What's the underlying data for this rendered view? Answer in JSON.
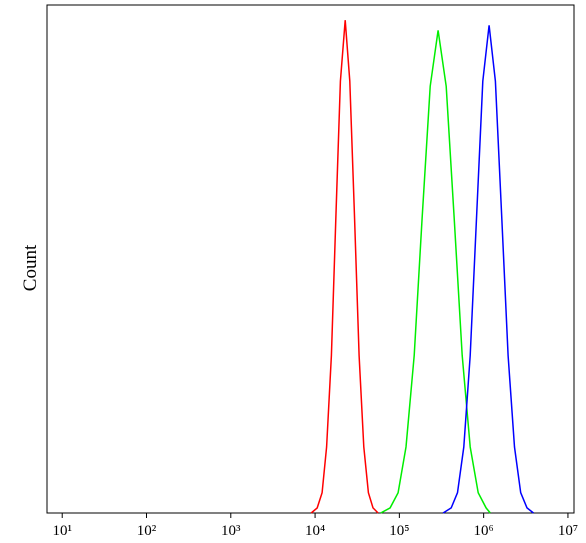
{
  "chart_data": {
    "type": "line",
    "y_label": "Count",
    "x_scale": "log",
    "xlim": [
      6.6,
      11800000
    ],
    "ylim": [
      0,
      100
    ],
    "xticks": [
      {
        "value": 10,
        "label": "10¹"
      },
      {
        "value": 100,
        "label": "10²"
      },
      {
        "value": 1000,
        "label": "10³"
      },
      {
        "value": 10000,
        "label": "10⁴"
      },
      {
        "value": 100000,
        "label": "10⁵"
      },
      {
        "value": 1000000,
        "label": "10⁶"
      },
      {
        "value": 10000000,
        "label": "10⁷"
      }
    ],
    "series": [
      {
        "color": "#ff0000",
        "x": [
          9000,
          10600,
          12100,
          13700,
          15600,
          17700,
          20000,
          22800,
          25800,
          29300,
          33300,
          37800,
          42900,
          48600,
          56000
        ],
        "values": [
          0,
          1,
          4,
          13,
          31,
          59,
          85,
          97,
          85,
          59,
          31,
          13,
          4,
          1,
          0
        ]
      },
      {
        "color": "#00ee00",
        "x": [
          60000,
          77600,
          96600,
          120000,
          150000,
          186000,
          232000,
          288000,
          359000,
          447000,
          556000,
          692000,
          861000,
          1070000,
          1200000
        ],
        "values": [
          0,
          1,
          4,
          13,
          31,
          58,
          84,
          95,
          84,
          58,
          31,
          13,
          4,
          1,
          0
        ]
      },
      {
        "color": "#0000ff",
        "x": [
          330000,
          412000,
          490000,
          582000,
          692000,
          822000,
          977000,
          1160000,
          1380000,
          1640000,
          1950000,
          2320000,
          2750000,
          3270000,
          3900000
        ],
        "values": [
          0,
          1,
          4,
          13,
          31,
          58,
          85,
          96,
          85,
          58,
          31,
          13,
          4,
          1,
          0
        ]
      }
    ]
  }
}
